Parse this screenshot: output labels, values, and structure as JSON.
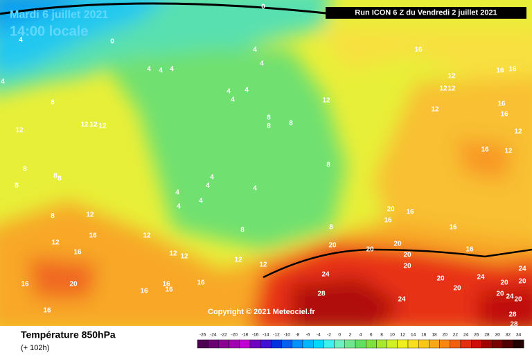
{
  "header": {
    "date": "Mardi 6 juillet 2021",
    "time": "14:00 locale",
    "run": "Run ICON 6 Z du Vendredi 2 juillet 2021"
  },
  "copyright": "Copyright © 2021 Meteociel.fr",
  "footer": {
    "title": "Température 850hPa",
    "lead": "(+ 102h)"
  },
  "colorbar": {
    "ticks": [
      -26,
      -24,
      -22,
      -20,
      -18,
      -16,
      -14,
      -12,
      -10,
      -8,
      -6,
      -4,
      -2,
      0,
      2,
      4,
      6,
      8,
      10,
      12,
      14,
      16,
      18,
      20,
      22,
      24,
      26,
      28,
      30,
      32,
      34
    ],
    "colors": [
      "#4b0051",
      "#6a006f",
      "#8a0090",
      "#a000b0",
      "#c000d0",
      "#7000c0",
      "#4010d0",
      "#0030e0",
      "#0060f0",
      "#0090ff",
      "#00b8ff",
      "#00d8ff",
      "#40f0f0",
      "#70f0c0",
      "#70e890",
      "#60e060",
      "#80e040",
      "#a8e830",
      "#d0f028",
      "#f0f020",
      "#f8e020",
      "#f8c818",
      "#f8a818",
      "#f88810",
      "#f06010",
      "#e03010",
      "#c81008",
      "#a00000",
      "#780000",
      "#500000",
      "#200000"
    ]
  },
  "contour_labels": [
    0,
    0,
    4,
    4,
    4,
    4,
    4,
    4,
    4,
    4,
    4,
    4,
    8,
    12,
    12,
    12,
    12,
    8,
    8,
    8,
    12,
    16,
    12,
    12,
    12,
    16,
    16,
    12,
    16,
    16,
    12,
    16,
    12,
    8,
    8,
    8,
    8,
    4,
    4,
    4,
    4,
    4,
    4,
    8,
    8,
    12,
    12,
    16,
    12,
    8,
    8,
    20,
    16,
    16,
    16,
    20,
    20,
    20,
    16,
    20,
    16,
    12,
    12,
    12,
    12,
    20,
    24,
    24,
    20,
    16,
    16,
    16,
    20,
    24,
    20,
    20,
    20,
    16,
    16,
    28,
    20,
    24,
    20,
    16,
    24,
    28,
    28
  ]
}
